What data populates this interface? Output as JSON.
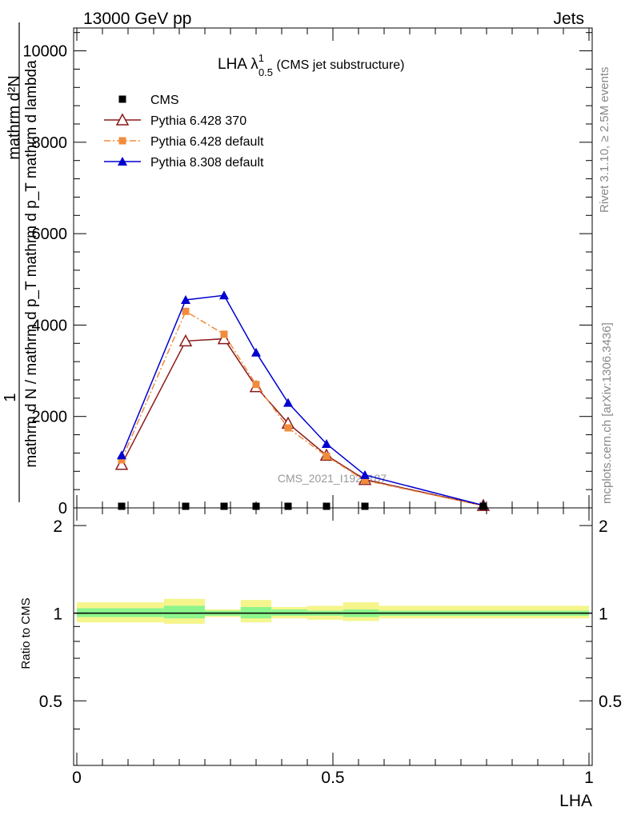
{
  "header": {
    "energy_label": "13000 GeV pp",
    "category_label": "Jets"
  },
  "side": {
    "rivet_label": "Rivet 3.1.10, ≥ 2.5M events",
    "mcplots_label": "mcplots.cern.ch [arXiv:1306.3436]"
  },
  "watermark": "CMS_2021_I1920187",
  "chart_data": [
    {
      "type": "line",
      "title": {
        "main": "LHA λ",
        "sup": "1",
        "sub": "0.5",
        "tail": " (CMS jet substructure)"
      },
      "ylabel": {
        "one": "1",
        "numerator": "mathrm d²N",
        "denominator": "mathrm d N / mathrm d p_T mathrm d p_T mathrm d lambda"
      },
      "xlim": [
        0,
        1
      ],
      "ylim": [
        0,
        10500
      ],
      "yticks": [
        0,
        2000,
        4000,
        6000,
        8000,
        10000
      ],
      "x": [
        0.0875,
        0.2125,
        0.2875,
        0.35,
        0.4125,
        0.4875,
        0.5625,
        0.7937
      ],
      "series": [
        {
          "name": "CMS",
          "style": "data",
          "color": "#000000",
          "marker": "square",
          "values": [
            0,
            0,
            0,
            0,
            0,
            0,
            0,
            0
          ]
        },
        {
          "name": "Pythia 6.428 370",
          "style": "solid",
          "color": "#8b1a1a",
          "marker": "open-triangle",
          "values": [
            950,
            3650,
            3700,
            2650,
            1850,
            1150,
            620,
            50
          ]
        },
        {
          "name": "Pythia 6.428 default",
          "style": "dashdot",
          "color": "#f08c3c",
          "marker": "square",
          "values": [
            1050,
            4300,
            3800,
            2700,
            1750,
            1130,
            600,
            45
          ]
        },
        {
          "name": "Pythia 8.308 default",
          "style": "solid",
          "color": "#0000d0",
          "marker": "triangle",
          "values": [
            1150,
            4550,
            4650,
            3400,
            2300,
            1400,
            720,
            55
          ]
        }
      ]
    },
    {
      "type": "area",
      "ylabel": "Ratio to CMS",
      "xlabel": "LHA",
      "xlim": [
        0,
        1
      ],
      "ylim": [
        0.3,
        2.3
      ],
      "yticks": [
        0.5,
        1,
        2
      ],
      "ytick_labels": [
        "0.5",
        "1",
        "2"
      ],
      "xticks": [
        0,
        0.5,
        1
      ],
      "xtick_labels": [
        "0",
        "0.5",
        "1"
      ],
      "band_colors": {
        "inner": "#8cf58c",
        "outer": "#f5f58c"
      },
      "bins": [
        {
          "lo": 0.0,
          "hi": 0.17,
          "inner": [
            0.97,
            1.04
          ],
          "outer": [
            0.93,
            1.09
          ]
        },
        {
          "lo": 0.17,
          "hi": 0.25,
          "inner": [
            0.96,
            1.06
          ],
          "outer": [
            0.92,
            1.12
          ]
        },
        {
          "lo": 0.25,
          "hi": 0.32,
          "inner": [
            0.98,
            1.02
          ],
          "outer": [
            0.97,
            1.03
          ]
        },
        {
          "lo": 0.32,
          "hi": 0.38,
          "inner": [
            0.96,
            1.05
          ],
          "outer": [
            0.93,
            1.11
          ]
        },
        {
          "lo": 0.38,
          "hi": 0.45,
          "inner": [
            0.98,
            1.03
          ],
          "outer": [
            0.96,
            1.05
          ]
        },
        {
          "lo": 0.45,
          "hi": 0.52,
          "inner": [
            0.98,
            1.02
          ],
          "outer": [
            0.95,
            1.06
          ]
        },
        {
          "lo": 0.52,
          "hi": 0.59,
          "inner": [
            0.97,
            1.03
          ],
          "outer": [
            0.94,
            1.09
          ]
        },
        {
          "lo": 0.59,
          "hi": 1.0,
          "inner": [
            0.98,
            1.02
          ],
          "outer": [
            0.96,
            1.06
          ]
        }
      ]
    }
  ]
}
